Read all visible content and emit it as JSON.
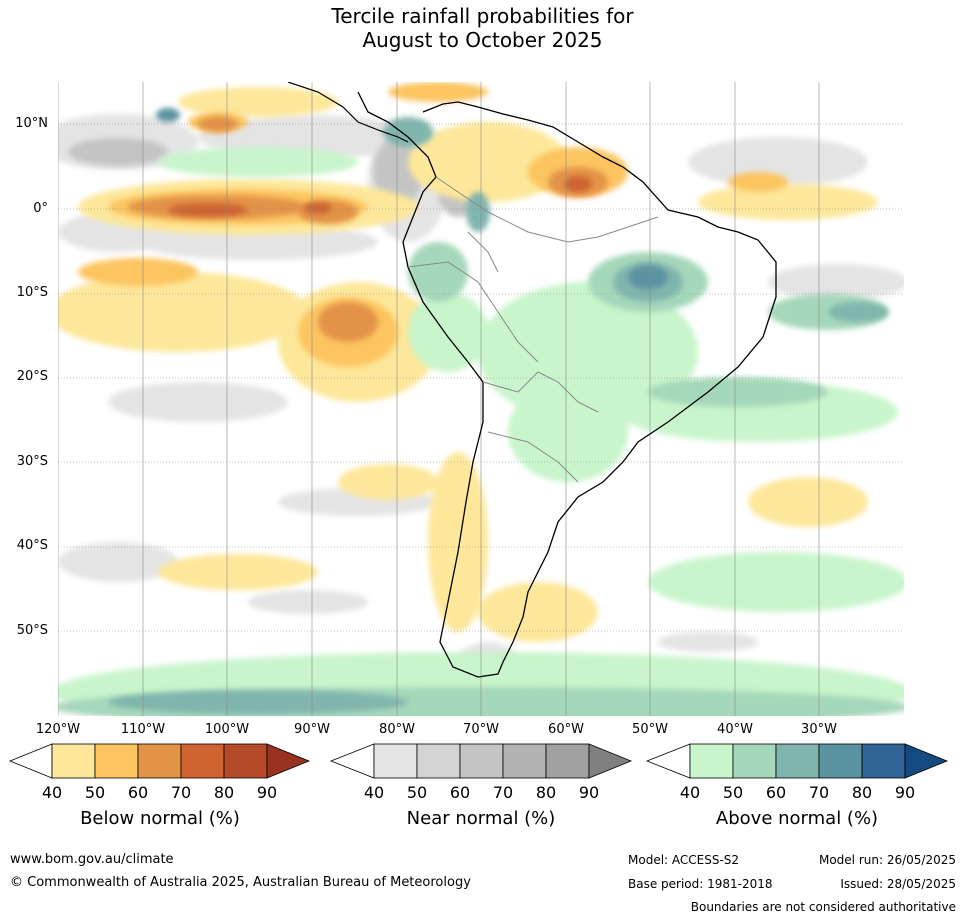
{
  "title": {
    "line1": "Tercile rainfall probabilities for",
    "line2": "August to October 2025"
  },
  "map": {
    "lat_labels": [
      "10°N",
      "0°",
      "10°S",
      "20°S",
      "30°S",
      "40°S",
      "50°S"
    ],
    "lon_labels": [
      "120°W",
      "110°W",
      "100°W",
      "90°W",
      "80°W",
      "70°W",
      "60°W",
      "50°W",
      "40°W",
      "30°W"
    ]
  },
  "colorbars": [
    {
      "title": "Below normal (%)",
      "ticks": [
        "40",
        "50",
        "60",
        "70",
        "80",
        "90"
      ],
      "colors": [
        "#ffffff",
        "#fde79a",
        "#fcc561",
        "#e39346",
        "#cd6431",
        "#b44a28",
        "#99331f"
      ]
    },
    {
      "title": "Near normal (%)",
      "ticks": [
        "40",
        "50",
        "60",
        "70",
        "80",
        "90"
      ],
      "colors": [
        "#ffffff",
        "#e4e4e4",
        "#d4d4d4",
        "#c4c4c4",
        "#b3b3b3",
        "#a1a1a1",
        "#808080"
      ]
    },
    {
      "title": "Above normal (%)",
      "ticks": [
        "40",
        "50",
        "60",
        "70",
        "80",
        "90"
      ],
      "colors": [
        "#ffffff",
        "#c8f5cb",
        "#a5d7ba",
        "#80b5ad",
        "#5c93a1",
        "#326396",
        "#134b80"
      ]
    }
  ],
  "footer": {
    "website": "www.bom.gov.au/climate",
    "copyright": "© Commonwealth of Australia 2025, Australian Bureau of Meteorology",
    "model": "Model: ACCESS-S2",
    "model_run": "Model run: 26/05/2025",
    "base_period": "Base period: 1981-2018",
    "issued": "Issued: 28/05/2025",
    "disclaimer": "Boundaries are not considered authoritative"
  }
}
